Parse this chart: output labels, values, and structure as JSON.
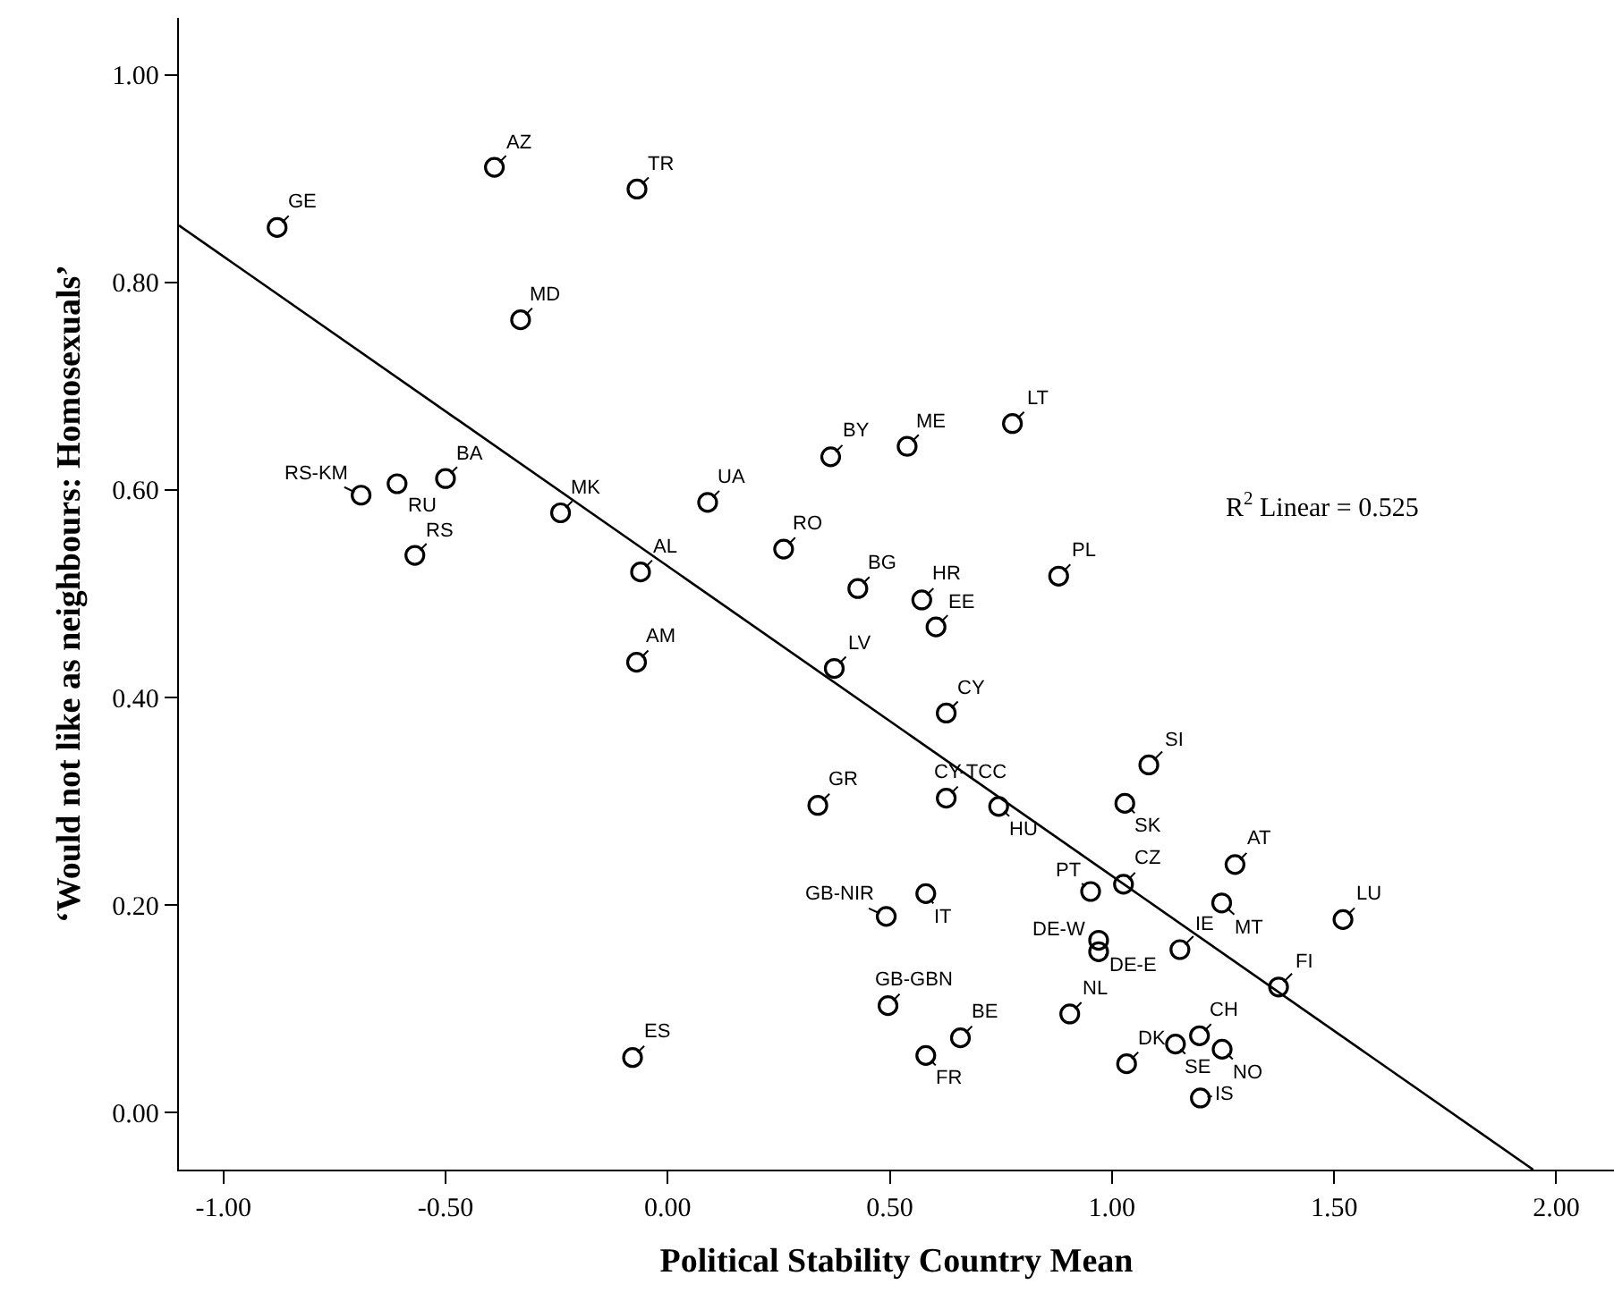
{
  "chart_data": {
    "type": "scatter",
    "xlabel": "Political Stability Country Mean",
    "ylabel": "‘Would not like as neighbours: Homosexuals’",
    "xlim": [
      -1.1,
      2.13
    ],
    "ylim": [
      -0.055,
      1.055
    ],
    "xticks": [
      {
        "value": -1,
        "label": "-1.00"
      },
      {
        "value": -0.5,
        "label": "-0.50"
      },
      {
        "value": 0,
        "label": "0.00"
      },
      {
        "value": 0.5,
        "label": "0.50"
      },
      {
        "value": 1,
        "label": "1.00"
      },
      {
        "value": 1.5,
        "label": "1.50"
      },
      {
        "value": 2,
        "label": "2.00"
      }
    ],
    "yticks": [
      {
        "value": 0,
        "label": "0.00"
      },
      {
        "value": 0.2,
        "label": "0.20"
      },
      {
        "value": 0.4,
        "label": "0.40"
      },
      {
        "value": 0.6,
        "label": "0.60"
      },
      {
        "value": 0.8,
        "label": "0.80"
      },
      {
        "value": 1,
        "label": "1.00"
      }
    ],
    "grid": false,
    "series": [
      {
        "marker": "circle",
        "color": "#000000",
        "x": [
          -0.879,
          -0.39,
          -0.069,
          -0.331,
          -0.69,
          -0.609,
          -0.5,
          -0.569,
          -0.241,
          -0.061,
          0.09,
          0.261,
          0.367,
          0.428,
          0.539,
          0.776,
          0.572,
          0.88,
          0.604,
          -0.07,
          0.375,
          0.338,
          0.492,
          0.496,
          -0.079,
          0.627,
          0.627,
          0.745,
          1.083,
          1.029,
          1.277,
          1.026,
          0.952,
          0.581,
          1.247,
          1.52,
          0.97,
          0.97,
          1.153,
          1.375,
          0.905,
          0.659,
          0.581,
          1.197,
          1.033,
          1.143,
          1.248,
          1.199
        ],
        "values": [
          0.853,
          0.911,
          0.89,
          0.764,
          0.595,
          0.606,
          0.611,
          0.537,
          0.578,
          0.521,
          0.588,
          0.543,
          0.632,
          0.505,
          0.642,
          0.664,
          0.494,
          0.517,
          0.468,
          0.434,
          0.428,
          0.296,
          0.189,
          0.103,
          0.053,
          0.385,
          0.303,
          0.295,
          0.335,
          0.298,
          0.239,
          0.22,
          0.213,
          0.211,
          0.202,
          0.186,
          0.166,
          0.155,
          0.157,
          0.121,
          0.095,
          0.072,
          0.055,
          0.074,
          0.047,
          0.066,
          0.061,
          0.014
        ]
      },
      {
        "type": "line",
        "marker": "none",
        "color": "#000000",
        "x": [
          -1.1,
          1.948
        ],
        "values": [
          0.855,
          -0.055
        ]
      }
    ],
    "annotations": [
      {
        "text": "GE",
        "x": -0.879,
        "y": 0.853
      },
      {
        "text": "AZ",
        "x": -0.39,
        "y": 0.911
      },
      {
        "text": "TR",
        "x": -0.069,
        "y": 0.89
      },
      {
        "text": "MD",
        "x": -0.331,
        "y": 0.764
      },
      {
        "text": "RS-KM",
        "x": -0.69,
        "y": 0.595
      },
      {
        "text": "RU",
        "x": -0.609,
        "y": 0.606
      },
      {
        "text": "BA",
        "x": -0.5,
        "y": 0.611
      },
      {
        "text": "RS",
        "x": -0.569,
        "y": 0.537
      },
      {
        "text": "MK",
        "x": -0.241,
        "y": 0.578
      },
      {
        "text": "AL",
        "x": -0.061,
        "y": 0.521
      },
      {
        "text": "UA",
        "x": 0.09,
        "y": 0.588
      },
      {
        "text": "RO",
        "x": 0.261,
        "y": 0.543
      },
      {
        "text": "BY",
        "x": 0.367,
        "y": 0.632
      },
      {
        "text": "BG",
        "x": 0.428,
        "y": 0.505
      },
      {
        "text": "ME",
        "x": 0.539,
        "y": 0.642
      },
      {
        "text": "LT",
        "x": 0.776,
        "y": 0.664
      },
      {
        "text": "HR",
        "x": 0.572,
        "y": 0.494
      },
      {
        "text": "PL",
        "x": 0.88,
        "y": 0.517
      },
      {
        "text": "EE",
        "x": 0.604,
        "y": 0.468
      },
      {
        "text": "AM",
        "x": -0.07,
        "y": 0.434
      },
      {
        "text": "LV",
        "x": 0.375,
        "y": 0.428
      },
      {
        "text": "GR",
        "x": 0.338,
        "y": 0.296
      },
      {
        "text": "GB-NIR",
        "x": 0.492,
        "y": 0.189
      },
      {
        "text": "GB-GBN",
        "x": 0.496,
        "y": 0.103
      },
      {
        "text": "ES",
        "x": -0.079,
        "y": 0.053
      },
      {
        "text": "CY",
        "x": 0.627,
        "y": 0.385
      },
      {
        "text": "CY-TCC",
        "x": 0.627,
        "y": 0.303
      },
      {
        "text": "HU",
        "x": 0.745,
        "y": 0.295
      },
      {
        "text": "SI",
        "x": 1.083,
        "y": 0.335
      },
      {
        "text": "SK",
        "x": 1.029,
        "y": 0.298
      },
      {
        "text": "AT",
        "x": 1.277,
        "y": 0.239
      },
      {
        "text": "CZ",
        "x": 1.026,
        "y": 0.22
      },
      {
        "text": "PT",
        "x": 0.952,
        "y": 0.213
      },
      {
        "text": "IT",
        "x": 0.581,
        "y": 0.211
      },
      {
        "text": "MT",
        "x": 1.247,
        "y": 0.202
      },
      {
        "text": "LU",
        "x": 1.52,
        "y": 0.186
      },
      {
        "text": "DE-W",
        "x": 0.97,
        "y": 0.166
      },
      {
        "text": "DE-E",
        "x": 0.97,
        "y": 0.155
      },
      {
        "text": "IE",
        "x": 1.153,
        "y": 0.157
      },
      {
        "text": "FI",
        "x": 1.375,
        "y": 0.121
      },
      {
        "text": "NL",
        "x": 0.905,
        "y": 0.095
      },
      {
        "text": "BE",
        "x": 0.659,
        "y": 0.072
      },
      {
        "text": "FR",
        "x": 0.581,
        "y": 0.055
      },
      {
        "text": "CH",
        "x": 1.197,
        "y": 0.074
      },
      {
        "text": "DK",
        "x": 1.033,
        "y": 0.047
      },
      {
        "text": "SE",
        "x": 1.143,
        "y": 0.066
      },
      {
        "text": "NO",
        "x": 1.248,
        "y": 0.061
      },
      {
        "text": "IS",
        "x": 1.199,
        "y": 0.014
      },
      "R$^{2}$ Linear = 0.525"
    ]
  }
}
